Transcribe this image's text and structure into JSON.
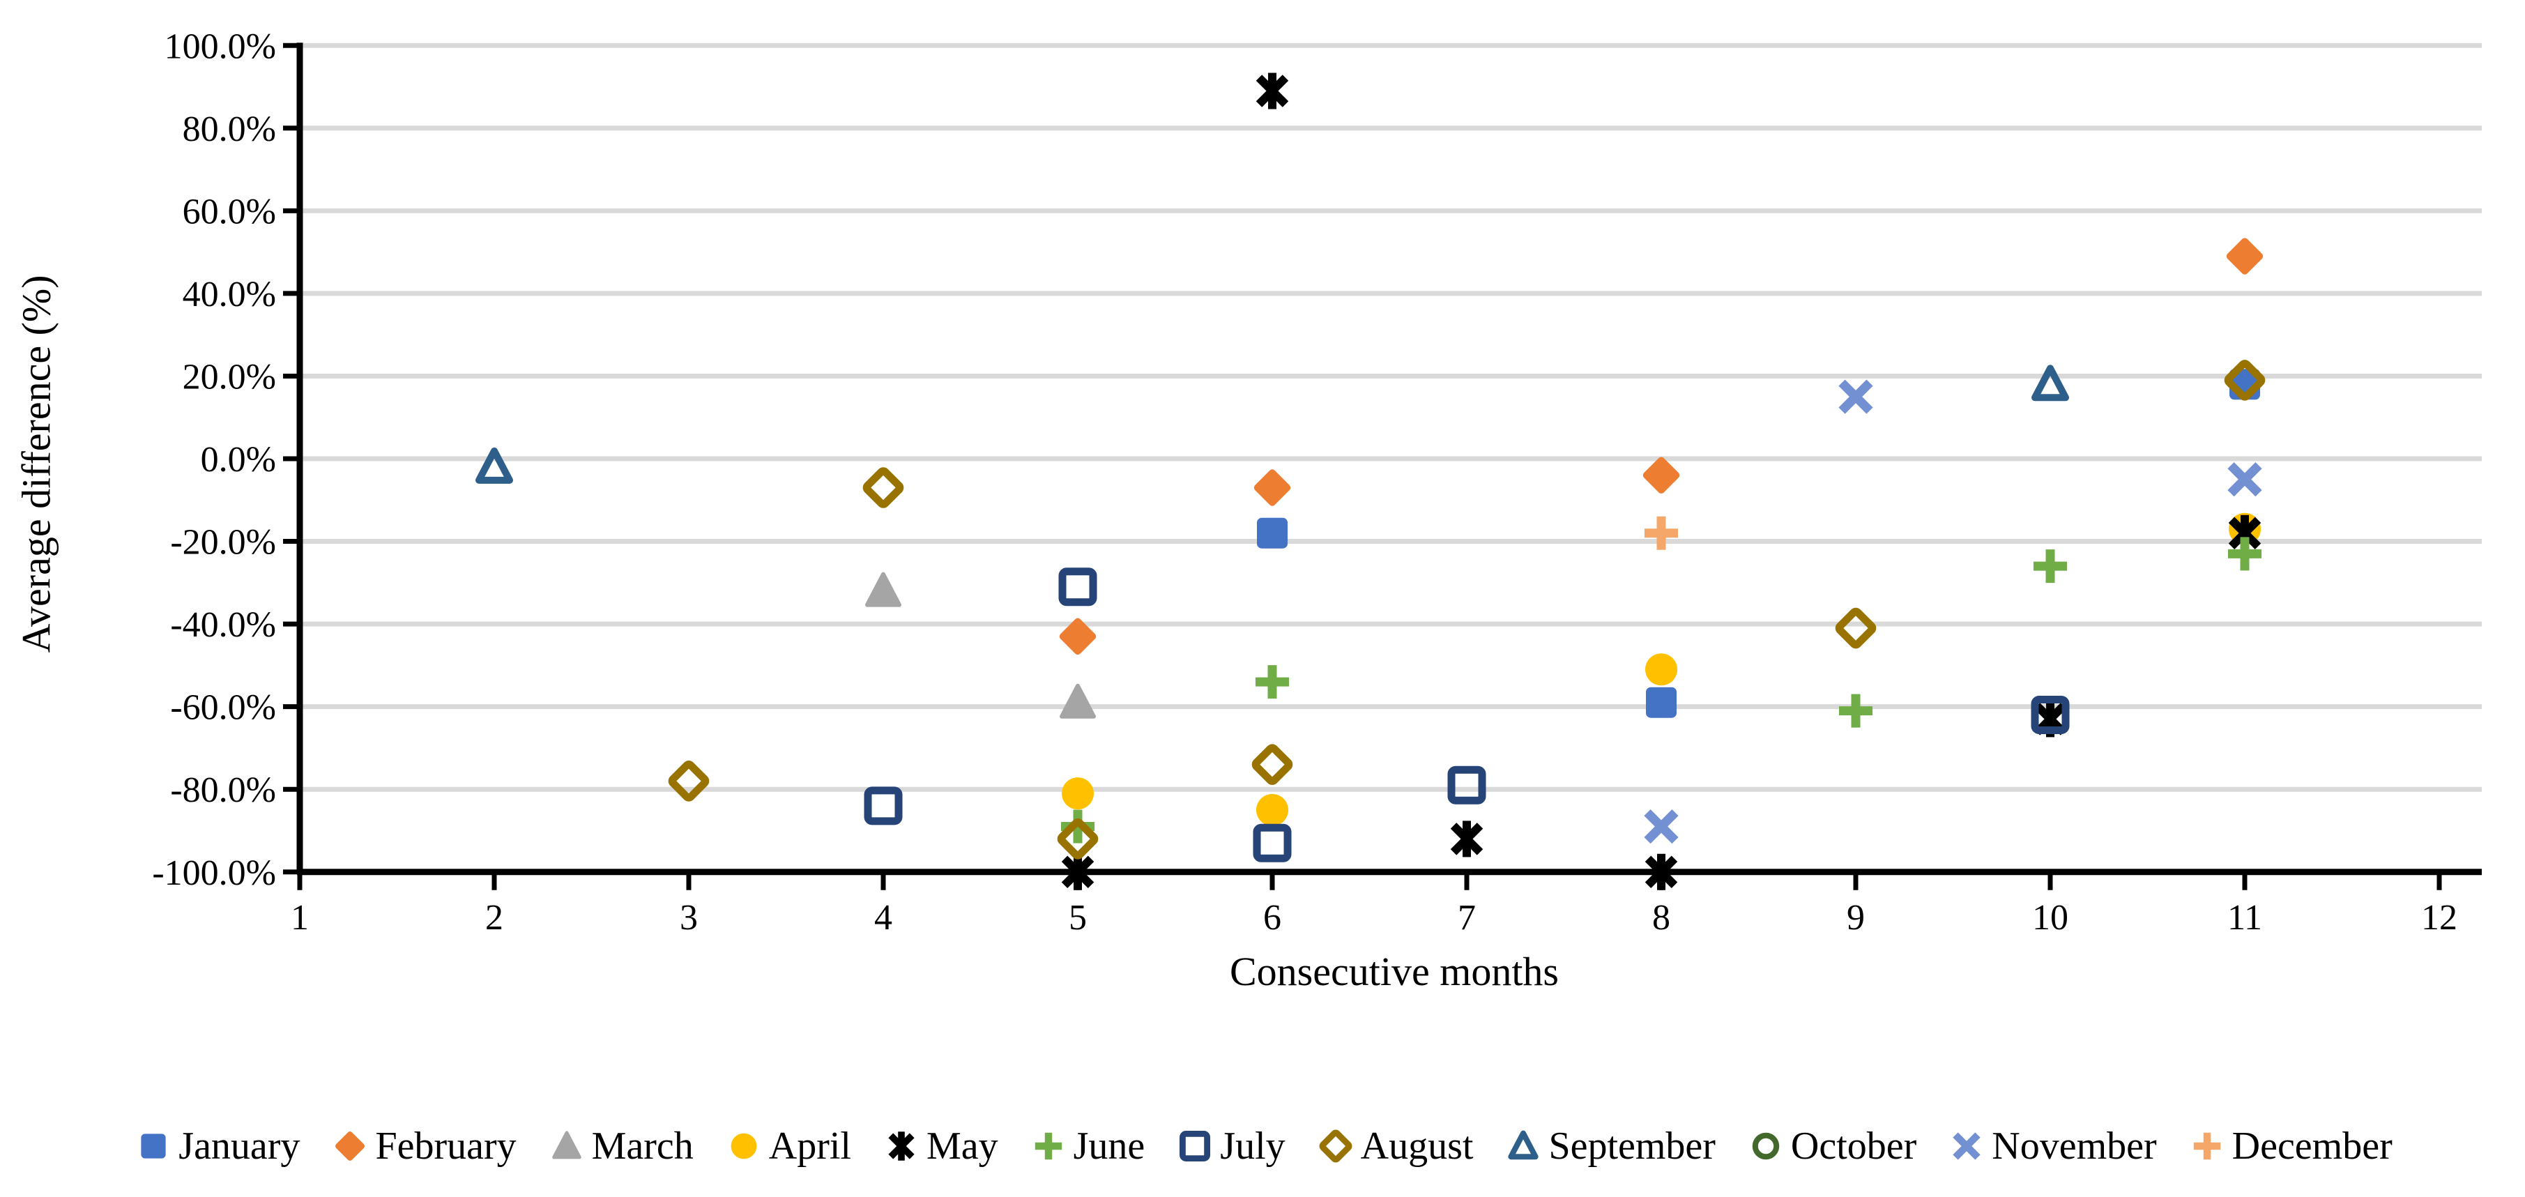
{
  "chart_data": {
    "type": "scatter",
    "title": "",
    "xlabel": "Consecutive months",
    "ylabel": "Average difference (%)",
    "xlim": [
      1,
      12
    ],
    "ylim_percent": [
      -100,
      100
    ],
    "x_ticks": [
      "1",
      "2",
      "3",
      "4",
      "5",
      "6",
      "7",
      "8",
      "9",
      "10",
      "11",
      "12"
    ],
    "y_ticks": [
      "100.0%",
      "80.0%",
      "60.0%",
      "40.0%",
      "20.0%",
      "0.0%",
      "-20.0%",
      "-40.0%",
      "-60.0%",
      "-80.0%",
      "-100.0%"
    ],
    "grid": "horizontal",
    "legend_position": "bottom",
    "gridline_color": "#D9D9D9",
    "axis_color": "#000000",
    "series": [
      {
        "name": "January",
        "marker": "square",
        "color": "#4472C4",
        "filled": true,
        "points": [
          [
            6,
            -18
          ],
          [
            8,
            -59
          ],
          [
            11,
            18
          ]
        ]
      },
      {
        "name": "February",
        "marker": "diamond",
        "color": "#ED7D31",
        "filled": true,
        "points": [
          [
            5,
            -43
          ],
          [
            6,
            -7
          ],
          [
            8,
            -4
          ],
          [
            11,
            49
          ]
        ]
      },
      {
        "name": "March",
        "marker": "triangle",
        "color": "#A5A5A5",
        "filled": true,
        "points": [
          [
            4,
            -32
          ],
          [
            5,
            -59
          ]
        ]
      },
      {
        "name": "April",
        "marker": "circle",
        "color": "#FFC000",
        "filled": true,
        "points": [
          [
            5,
            -81
          ],
          [
            6,
            -85
          ],
          [
            8,
            -51
          ],
          [
            11,
            -17
          ]
        ]
      },
      {
        "name": "May",
        "marker": "star",
        "color": "#000000",
        "filled": true,
        "points": [
          [
            5,
            -100
          ],
          [
            6,
            89
          ],
          [
            7,
            -92
          ],
          [
            8,
            -100
          ],
          [
            10,
            -63
          ],
          [
            11,
            -18
          ]
        ]
      },
      {
        "name": "June",
        "marker": "plus",
        "color": "#70AD47",
        "filled": true,
        "points": [
          [
            5,
            -89
          ],
          [
            6,
            -54
          ],
          [
            9,
            -61
          ],
          [
            10,
            -26
          ],
          [
            11,
            -23
          ]
        ]
      },
      {
        "name": "July",
        "marker": "open-square",
        "color": "#264478",
        "filled": false,
        "points": [
          [
            4,
            -84
          ],
          [
            5,
            -31
          ],
          [
            6,
            -93
          ],
          [
            7,
            -79
          ],
          [
            10,
            -62
          ]
        ]
      },
      {
        "name": "August",
        "marker": "open-diamond",
        "color": "#997300",
        "filled": false,
        "points": [
          [
            3,
            -78
          ],
          [
            4,
            -7
          ],
          [
            5,
            -92
          ],
          [
            6,
            -74
          ],
          [
            9,
            -41
          ],
          [
            11,
            19
          ]
        ]
      },
      {
        "name": "September",
        "marker": "open-triangle",
        "color": "#2E5F8A",
        "filled": false,
        "points": [
          [
            2,
            -2
          ],
          [
            10,
            18
          ]
        ]
      },
      {
        "name": "October",
        "marker": "open-circle",
        "color": "#43682B",
        "filled": false,
        "points": []
      },
      {
        "name": "November",
        "marker": "x",
        "color": "#7391D2",
        "filled": true,
        "points": [
          [
            8,
            -89
          ],
          [
            9,
            15
          ],
          [
            11,
            -5
          ]
        ]
      },
      {
        "name": "December",
        "marker": "plus",
        "color": "#F4A768",
        "filled": true,
        "points": [
          [
            8,
            -18
          ]
        ]
      }
    ]
  }
}
